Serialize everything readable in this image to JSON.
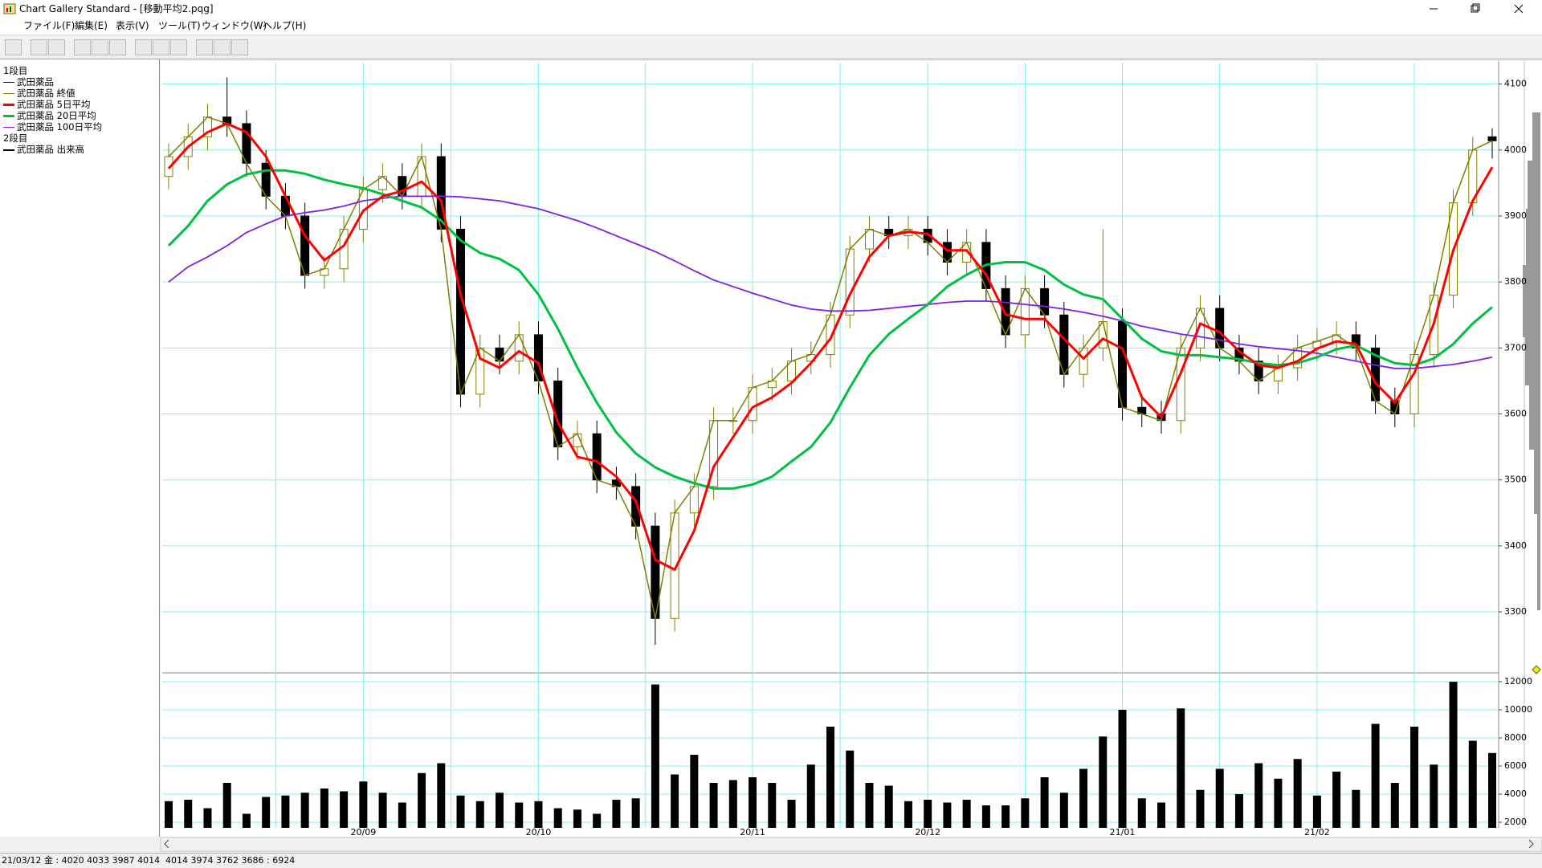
{
  "window": {
    "title": "Chart Gallery Standard - [移動平均2.pqg]",
    "menu": [
      "ファイル(F)",
      "編集(E)",
      "表示(V)",
      "ツール(T)",
      "ウィンドウ(W)",
      "ヘルプ(H)"
    ],
    "status": "21/03/12 金 : 4020 4033 3987 4014  4014 3974 3762 3686 : 6924"
  },
  "chart_data": [
    {
      "type": "candlestick",
      "legend_header": "1段目",
      "categories": [
        null,
        null,
        null,
        null,
        null,
        null,
        null,
        null,
        null,
        null,
        "20/09",
        null,
        null,
        null,
        null,
        null,
        null,
        null,
        null,
        "20/10",
        null,
        null,
        null,
        null,
        null,
        null,
        null,
        null,
        null,
        null,
        "20/11",
        null,
        null,
        null,
        null,
        null,
        null,
        null,
        null,
        "20/12",
        null,
        null,
        null,
        null,
        null,
        null,
        null,
        null,
        null,
        "21/01",
        null,
        null,
        null,
        null,
        null,
        null,
        null,
        null,
        null,
        "21/02",
        null,
        null,
        null,
        null,
        null,
        null,
        null,
        null,
        null
      ],
      "ylim": [
        3210,
        4130
      ],
      "yticks": [
        3300,
        3400,
        3500,
        3600,
        3700,
        3800,
        3900,
        4000,
        4100
      ],
      "grid": true,
      "candles": {
        "name": "武田薬品",
        "color": "#000000",
        "close_name": "武田薬品 終値",
        "close_color": "#808000",
        "open": [
          3960,
          3990,
          4020,
          4050,
          4040,
          3980,
          3930,
          3900,
          3810,
          3820,
          3880,
          3940,
          3960,
          3930,
          3990,
          3880,
          3630,
          3700,
          3680,
          3720,
          3650,
          3550,
          3570,
          3500,
          3490,
          3430,
          3290,
          3450,
          3490,
          3590,
          3590,
          3640,
          3650,
          3680,
          3690,
          3750,
          3850,
          3880,
          3870,
          3880,
          3860,
          3830,
          3860,
          3790,
          3720,
          3790,
          3750,
          3660,
          3700,
          3740,
          3610,
          3600,
          3590,
          3700,
          3760,
          3700,
          3680,
          3650,
          3670,
          3700,
          3710,
          3720,
          3700,
          3620,
          3600,
          3690,
          3780,
          3920,
          4020
        ],
        "high": [
          4010,
          4040,
          4070,
          4110,
          4060,
          4000,
          3950,
          3920,
          3840,
          3900,
          3960,
          3980,
          3980,
          4010,
          4010,
          3900,
          3720,
          3720,
          3740,
          3740,
          3670,
          3590,
          3590,
          3520,
          3510,
          3450,
          3470,
          3510,
          3610,
          3610,
          3660,
          3670,
          3700,
          3710,
          3770,
          3870,
          3900,
          3900,
          3900,
          3900,
          3880,
          3880,
          3880,
          3810,
          3810,
          3810,
          3770,
          3720,
          3880,
          3760,
          3630,
          3620,
          3720,
          3780,
          3780,
          3720,
          3700,
          3690,
          3720,
          3730,
          3740,
          3740,
          3720,
          3640,
          3710,
          3800,
          3940,
          4020,
          4033
        ],
        "low": [
          3940,
          3970,
          4000,
          4020,
          3960,
          3910,
          3880,
          3790,
          3790,
          3800,
          3860,
          3920,
          3910,
          3910,
          3860,
          3610,
          3610,
          3660,
          3660,
          3630,
          3530,
          3530,
          3480,
          3470,
          3410,
          3250,
          3270,
          3430,
          3470,
          3570,
          3570,
          3620,
          3630,
          3660,
          3670,
          3730,
          3830,
          3850,
          3850,
          3840,
          3810,
          3810,
          3770,
          3700,
          3700,
          3730,
          3640,
          3640,
          3680,
          3590,
          3580,
          3570,
          3570,
          3680,
          3680,
          3660,
          3630,
          3630,
          3650,
          3680,
          3690,
          3680,
          3600,
          3580,
          3580,
          3670,
          3760,
          3900,
          3987
        ],
        "close": [
          3990,
          4020,
          4050,
          4040,
          3980,
          3930,
          3900,
          3810,
          3820,
          3880,
          3940,
          3960,
          3930,
          3990,
          3880,
          3630,
          3700,
          3680,
          3720,
          3650,
          3550,
          3570,
          3500,
          3490,
          3430,
          3290,
          3450,
          3490,
          3590,
          3590,
          3640,
          3650,
          3680,
          3690,
          3750,
          3850,
          3880,
          3870,
          3880,
          3860,
          3830,
          3860,
          3790,
          3720,
          3790,
          3750,
          3660,
          3700,
          3740,
          3610,
          3600,
          3590,
          3700,
          3760,
          3700,
          3680,
          3650,
          3670,
          3700,
          3710,
          3720,
          3700,
          3620,
          3600,
          3690,
          3780,
          3920,
          4000,
          4014
        ]
      },
      "series": [
        {
          "name": "武田薬品 5日平均",
          "color": "#ff0000",
          "width": 3,
          "values": [
            3972,
            4005,
            4027,
            4040,
            4027,
            3990,
            3930,
            3870,
            3833,
            3855,
            3908,
            3930,
            3938,
            3952,
            3923,
            3781,
            3684,
            3670,
            3695,
            3677,
            3587,
            3535,
            3528,
            3505,
            3468,
            3379,
            3364,
            3423,
            3520,
            3565,
            3610,
            3625,
            3647,
            3677,
            3714,
            3781,
            3838,
            3870,
            3876,
            3873,
            3848,
            3848,
            3811,
            3751,
            3744,
            3744,
            3714,
            3684,
            3714,
            3699,
            3625,
            3595,
            3662,
            3737,
            3724,
            3695,
            3674,
            3670,
            3680,
            3699,
            3710,
            3706,
            3647,
            3617,
            3662,
            3737,
            3848,
            3923,
            3974
          ]
        },
        {
          "name": "武田薬品 20日平均",
          "color": "#00c040",
          "width": 3,
          "values": [
            3855,
            3885,
            3923,
            3948,
            3963,
            3969,
            3969,
            3964,
            3955,
            3948,
            3942,
            3933,
            3923,
            3913,
            3893,
            3863,
            3844,
            3835,
            3818,
            3781,
            3729,
            3670,
            3617,
            3572,
            3540,
            3519,
            3505,
            3495,
            3487,
            3487,
            3493,
            3505,
            3528,
            3550,
            3587,
            3640,
            3689,
            3721,
            3744,
            3766,
            3793,
            3811,
            3826,
            3830,
            3830,
            3818,
            3796,
            3781,
            3774,
            3744,
            3714,
            3695,
            3689,
            3689,
            3686,
            3683,
            3677,
            3674,
            3677,
            3686,
            3698,
            3704,
            3689,
            3677,
            3674,
            3684,
            3706,
            3737,
            3762
          ]
        },
        {
          "name": "武田薬品 100日平均",
          "color": "#8020e0",
          "width": 1.8,
          "values": [
            3800,
            3823,
            3838,
            3855,
            3875,
            3888,
            3900,
            3905,
            3909,
            3915,
            3923,
            3927,
            3930,
            3930,
            3930,
            3929,
            3926,
            3923,
            3917,
            3911,
            3902,
            3893,
            3882,
            3870,
            3858,
            3846,
            3832,
            3817,
            3803,
            3793,
            3783,
            3774,
            3765,
            3759,
            3756,
            3756,
            3757,
            3760,
            3763,
            3766,
            3769,
            3771,
            3771,
            3769,
            3766,
            3763,
            3759,
            3754,
            3748,
            3741,
            3733,
            3727,
            3721,
            3717,
            3712,
            3706,
            3702,
            3699,
            3696,
            3692,
            3686,
            3680,
            3674,
            3669,
            3669,
            3672,
            3675,
            3680,
            3686
          ]
        }
      ]
    },
    {
      "type": "bar",
      "legend_header": "2段目",
      "ylim": [
        1600,
        12400
      ],
      "yticks": [
        2000,
        4000,
        6000,
        8000,
        10000,
        12000
      ],
      "grid": true,
      "series": [
        {
          "name": "武田薬品 出来高",
          "color": "#000000",
          "values": [
            3500,
            3600,
            3000,
            4800,
            2600,
            3800,
            3900,
            4100,
            4400,
            4200,
            4900,
            4100,
            3400,
            5500,
            6200,
            3900,
            3500,
            4100,
            3400,
            3500,
            3000,
            2900,
            2600,
            3600,
            3700,
            11800,
            5400,
            6800,
            4800,
            5000,
            5200,
            4800,
            3600,
            6100,
            8800,
            7100,
            4800,
            4600,
            3500,
            3600,
            3400,
            3600,
            3200,
            3200,
            3700,
            5200,
            4100,
            5800,
            8100,
            10000,
            3700,
            3400,
            10100,
            4300,
            5800,
            4000,
            6200,
            5100,
            6500,
            3900,
            5600,
            4300,
            9000,
            4800,
            8800,
            6100,
            12000,
            7800,
            6924
          ]
        }
      ]
    }
  ]
}
